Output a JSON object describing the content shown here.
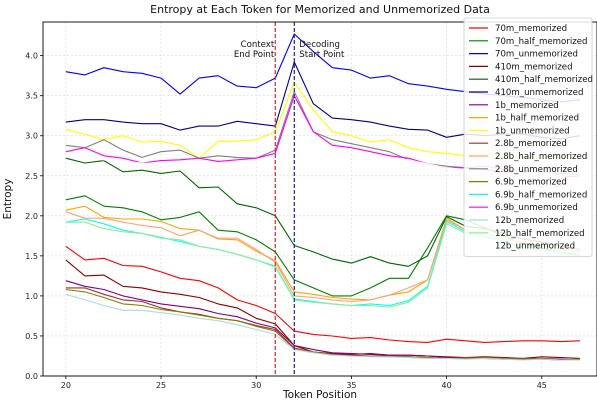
{
  "chart_data": {
    "type": "line",
    "title": "Entropy at Each Token for Memorized and Unmemorized Data",
    "xlabel": "Token Position",
    "ylabel": "Entropy",
    "xlim": [
      18.8,
      47.9
    ],
    "ylim": [
      0.0,
      4.42
    ],
    "xticks": [
      20,
      25,
      30,
      35,
      40,
      45
    ],
    "yticks": [
      0.0,
      0.5,
      1.0,
      1.5,
      2.0,
      2.5,
      3.0,
      3.5,
      4.0
    ],
    "xtick_labels": [
      "20",
      "25",
      "30",
      "35",
      "40",
      "45"
    ],
    "ytick_labels": [
      "0.0",
      "0.5",
      "1.0",
      "1.5",
      "2.0",
      "2.5",
      "3.0",
      "3.5",
      "4.0"
    ],
    "grid": true,
    "legend_position": "upper-right",
    "x": [
      20,
      21,
      22,
      23,
      24,
      25,
      26,
      27,
      28,
      29,
      30,
      31,
      32,
      33,
      34,
      35,
      36,
      37,
      38,
      39,
      40,
      41,
      42,
      43,
      44,
      45,
      46,
      47
    ],
    "vlines": [
      {
        "x": 31,
        "color": "#d62728",
        "label": "Context\nEnd Point"
      },
      {
        "x": 32,
        "color": "#1f1fb4",
        "label": "Decoding\nStart Point"
      }
    ],
    "series": [
      {
        "name": "70m_memorized",
        "color": "#ff0000",
        "values": [
          1.62,
          1.45,
          1.47,
          1.38,
          1.37,
          1.3,
          1.22,
          1.19,
          1.1,
          0.95,
          0.88,
          0.78,
          0.56,
          0.52,
          0.5,
          0.47,
          0.48,
          0.45,
          0.43,
          0.42,
          0.46,
          0.44,
          0.42,
          0.43,
          0.44,
          0.44,
          0.43,
          0.44
        ]
      },
      {
        "name": "70m_half_memorized",
        "color": "#008000",
        "values": [
          2.2,
          2.25,
          2.12,
          2.1,
          2.05,
          1.95,
          1.98,
          2.05,
          1.82,
          1.8,
          1.7,
          1.55,
          1.2,
          1.1,
          1.0,
          1.0,
          1.1,
          1.22,
          1.22,
          1.6,
          2.0,
          1.95,
          1.85,
          1.75,
          1.65,
          1.6,
          1.55,
          1.5
        ]
      },
      {
        "name": "70m_unmemorized",
        "color": "#0000ff",
        "values": [
          3.8,
          3.76,
          3.85,
          3.8,
          3.78,
          3.72,
          3.52,
          3.72,
          3.75,
          3.62,
          3.6,
          3.72,
          4.27,
          4.05,
          3.85,
          3.82,
          3.72,
          3.75,
          3.65,
          3.62,
          3.58,
          3.55,
          3.52,
          3.5,
          3.48,
          3.45,
          3.42,
          3.45
        ]
      },
      {
        "name": "410m_memorized",
        "color": "#8b0000",
        "values": [
          1.45,
          1.25,
          1.26,
          1.12,
          1.1,
          1.05,
          1.02,
          0.98,
          0.9,
          0.85,
          0.72,
          0.65,
          0.38,
          0.3,
          0.28,
          0.27,
          0.28,
          0.26,
          0.26,
          0.25,
          0.24,
          0.23,
          0.24,
          0.23,
          0.22,
          0.24,
          0.23,
          0.22
        ]
      },
      {
        "name": "410m_half_memorized",
        "color": "#006400",
        "values": [
          2.72,
          2.66,
          2.69,
          2.55,
          2.57,
          2.53,
          2.56,
          2.35,
          2.36,
          2.15,
          2.1,
          2.0,
          1.63,
          1.55,
          1.46,
          1.41,
          1.49,
          1.41,
          1.37,
          1.5,
          1.99,
          1.87,
          1.84,
          1.78,
          1.71,
          1.67,
          1.62,
          1.58
        ]
      },
      {
        "name": "410m_unmemorized",
        "color": "#00008b",
        "values": [
          3.17,
          3.2,
          3.2,
          3.17,
          3.15,
          3.15,
          3.07,
          3.12,
          3.12,
          3.18,
          3.15,
          3.12,
          3.92,
          3.4,
          3.22,
          3.2,
          3.17,
          3.12,
          3.08,
          3.07,
          2.98,
          3.02,
          3.0,
          3.02,
          3.02,
          2.98,
          2.96,
          3.0
        ]
      },
      {
        "name": "1b_memorized",
        "color": "#800080",
        "values": [
          1.19,
          1.12,
          1.08,
          1.0,
          0.95,
          0.9,
          0.87,
          0.84,
          0.78,
          0.74,
          0.66,
          0.6,
          0.38,
          0.33,
          0.29,
          0.28,
          0.27,
          0.26,
          0.26,
          0.25,
          0.23,
          0.22,
          0.23,
          0.22,
          0.21,
          0.22,
          0.21,
          0.2
        ]
      },
      {
        "name": "1b_half_memorized",
        "color": "#ffa500",
        "values": [
          2.07,
          2.12,
          1.98,
          1.96,
          1.96,
          1.93,
          1.84,
          1.82,
          1.71,
          1.7,
          1.56,
          1.44,
          1.05,
          1.02,
          0.98,
          0.96,
          0.95,
          1.01,
          1.05,
          1.2,
          1.97,
          1.82,
          1.78,
          1.72,
          1.66,
          1.62,
          1.58,
          1.55
        ]
      },
      {
        "name": "1b_unmemorized",
        "color": "#ffff00",
        "values": [
          3.08,
          3.02,
          2.95,
          3.0,
          2.92,
          2.93,
          2.88,
          2.72,
          2.93,
          2.93,
          2.95,
          3.05,
          3.67,
          3.32,
          3.05,
          3.0,
          2.92,
          2.95,
          2.85,
          2.8,
          2.78,
          2.75,
          2.78,
          2.75,
          2.73,
          2.72,
          2.7,
          2.72
        ]
      },
      {
        "name": "2.8b_memorized",
        "color": "#a52a2a",
        "values": [
          1.1,
          1.1,
          1.02,
          0.95,
          0.93,
          0.85,
          0.8,
          0.77,
          0.72,
          0.69,
          0.63,
          0.58,
          0.35,
          0.3,
          0.27,
          0.26,
          0.25,
          0.25,
          0.24,
          0.23,
          0.22,
          0.23,
          0.22,
          0.21,
          0.22,
          0.21,
          0.2,
          0.21
        ]
      },
      {
        "name": "2.8b_half_memorized",
        "color": "#ffa07a",
        "values": [
          2.05,
          1.97,
          1.97,
          1.92,
          1.88,
          1.85,
          1.75,
          1.82,
          1.72,
          1.72,
          1.58,
          1.42,
          1.0,
          0.98,
          0.95,
          0.93,
          0.95,
          1.01,
          1.1,
          1.2,
          1.95,
          1.82,
          1.78,
          1.72,
          1.67,
          1.63,
          1.6,
          1.57
        ]
      },
      {
        "name": "2.8b_unmemorized",
        "color": "#808080",
        "values": [
          2.88,
          2.85,
          2.95,
          2.82,
          2.73,
          2.8,
          2.82,
          2.72,
          2.75,
          2.73,
          2.72,
          2.82,
          3.55,
          3.05,
          2.95,
          2.9,
          2.85,
          2.8,
          2.7,
          2.65,
          2.62,
          2.6,
          2.62,
          2.58,
          2.55,
          2.55,
          2.53,
          2.52
        ]
      },
      {
        "name": "6.9b_memorized",
        "color": "#808000",
        "values": [
          1.08,
          1.05,
          0.98,
          0.9,
          0.88,
          0.83,
          0.8,
          0.76,
          0.72,
          0.69,
          0.62,
          0.56,
          0.34,
          0.3,
          0.27,
          0.25,
          0.25,
          0.24,
          0.24,
          0.23,
          0.22,
          0.22,
          0.23,
          0.22,
          0.21,
          0.22,
          0.2,
          0.21
        ]
      },
      {
        "name": "6.9b_half_memorized",
        "color": "#00ffff",
        "values": [
          1.92,
          1.96,
          1.9,
          1.82,
          1.78,
          1.73,
          1.68,
          1.62,
          1.58,
          1.52,
          1.45,
          1.37,
          0.96,
          0.93,
          0.9,
          0.88,
          0.9,
          0.88,
          0.94,
          1.12,
          1.93,
          1.8,
          1.75,
          1.68,
          1.62,
          1.58,
          1.55,
          1.52
        ]
      },
      {
        "name": "6.9b_unmemorized",
        "color": "#ff00ff",
        "values": [
          2.8,
          2.85,
          2.75,
          2.72,
          2.66,
          2.69,
          2.7,
          2.72,
          2.68,
          2.7,
          2.72,
          2.78,
          3.5,
          3.05,
          2.88,
          2.85,
          2.8,
          2.75,
          2.72,
          2.65,
          2.6,
          2.6,
          2.58,
          2.55,
          2.52,
          2.5,
          2.48,
          2.5
        ]
      },
      {
        "name": "12b_memorized",
        "color": "#add8e6",
        "values": [
          1.02,
          0.95,
          0.88,
          0.82,
          0.82,
          0.79,
          0.76,
          0.72,
          0.69,
          0.64,
          0.58,
          0.52,
          0.33,
          0.29,
          0.26,
          0.25,
          0.24,
          0.24,
          0.23,
          0.22,
          0.22,
          0.21,
          0.22,
          0.21,
          0.2,
          0.21,
          0.2,
          0.2
        ]
      },
      {
        "name": "12b_half_memorized",
        "color": "#90ee90",
        "values": [
          1.92,
          1.92,
          1.84,
          1.8,
          1.78,
          1.72,
          1.7,
          1.62,
          1.58,
          1.52,
          1.45,
          1.36,
          0.95,
          0.92,
          0.9,
          0.88,
          0.88,
          0.86,
          0.92,
          1.1,
          1.9,
          1.78,
          1.74,
          1.67,
          1.6,
          1.56,
          1.53,
          1.5
        ]
      },
      {
        "name": "12b_unmemorized",
        "color": "#ffffff",
        "values": [
          2.75,
          2.72,
          2.7,
          2.68,
          2.66,
          2.65,
          2.64,
          2.63,
          2.62,
          2.63,
          2.65,
          2.7,
          3.4,
          3.0,
          2.85,
          2.8,
          2.76,
          2.72,
          2.7,
          2.65,
          2.6,
          2.58,
          2.56,
          2.54,
          2.52,
          2.5,
          2.48,
          2.48
        ]
      }
    ]
  }
}
